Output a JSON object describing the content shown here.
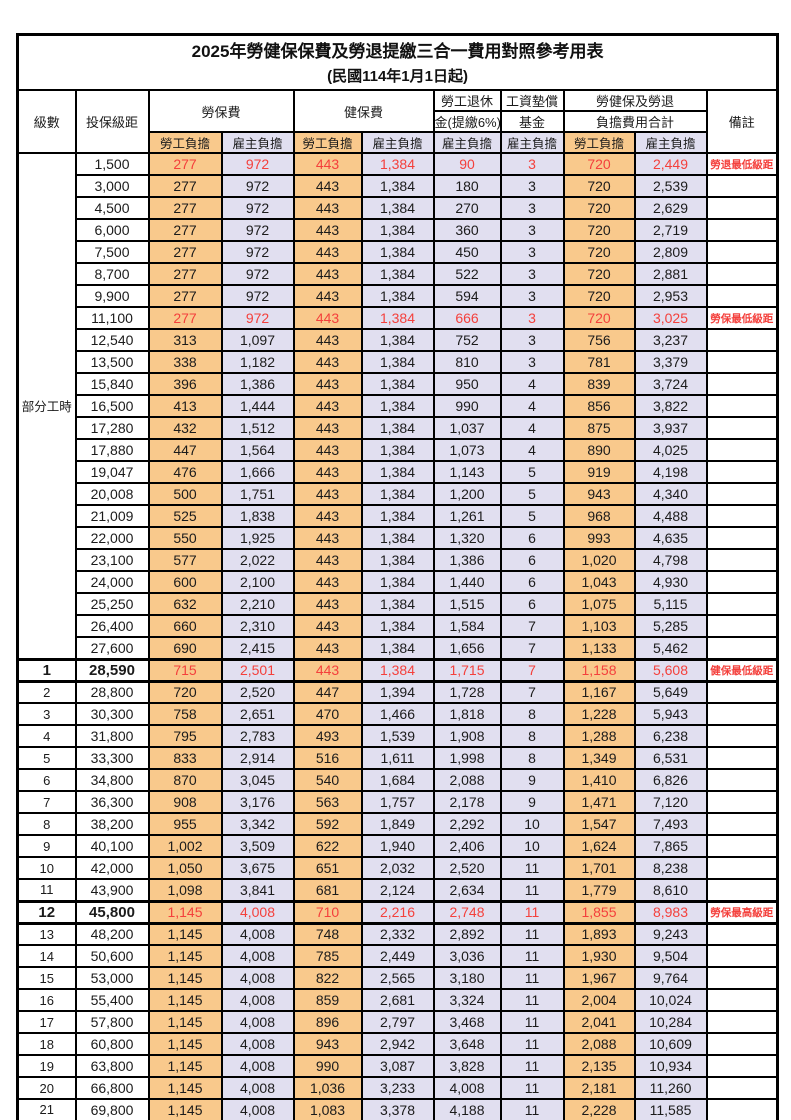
{
  "title": "2025年勞健保保費及勞退提繳三合一費用對照參考用表",
  "subtitle": "(民國114年1月1日起)",
  "header": {
    "level": "級數",
    "bracket": "投保級距",
    "labor": "勞保費",
    "health": "健保費",
    "pension_line1": "勞工退休",
    "pension_line2": "金(提繳6%)",
    "wage_line1": "工資墊償",
    "wage_line2": "基金",
    "total_line1": "勞健保及勞退",
    "total_line2": "負擔費用合計",
    "remark": "備註",
    "employee": "勞工負擔",
    "employer": "雇主負擔"
  },
  "part_time_label": "部分工時",
  "colors": {
    "employee_bg": "#F9C98C",
    "employer_bg": "#E1DFF0",
    "highlight_red": "#F4403C",
    "border": "#000000",
    "text": "#1B1B1B"
  },
  "rows": [
    {
      "lv": "",
      "br": "1,500",
      "a": "277",
      "b": "972",
      "c": "443",
      "d": "1,384",
      "p": "90",
      "w": "3",
      "ta": "720",
      "tb": "2,449",
      "rm": "勞退最低級距",
      "red": true,
      "hl": false
    },
    {
      "lv": "",
      "br": "3,000",
      "a": "277",
      "b": "972",
      "c": "443",
      "d": "1,384",
      "p": "180",
      "w": "3",
      "ta": "720",
      "tb": "2,539",
      "rm": "",
      "red": false,
      "hl": false
    },
    {
      "lv": "",
      "br": "4,500",
      "a": "277",
      "b": "972",
      "c": "443",
      "d": "1,384",
      "p": "270",
      "w": "3",
      "ta": "720",
      "tb": "2,629",
      "rm": "",
      "red": false,
      "hl": false
    },
    {
      "lv": "",
      "br": "6,000",
      "a": "277",
      "b": "972",
      "c": "443",
      "d": "1,384",
      "p": "360",
      "w": "3",
      "ta": "720",
      "tb": "2,719",
      "rm": "",
      "red": false,
      "hl": false
    },
    {
      "lv": "",
      "br": "7,500",
      "a": "277",
      "b": "972",
      "c": "443",
      "d": "1,384",
      "p": "450",
      "w": "3",
      "ta": "720",
      "tb": "2,809",
      "rm": "",
      "red": false,
      "hl": false
    },
    {
      "lv": "",
      "br": "8,700",
      "a": "277",
      "b": "972",
      "c": "443",
      "d": "1,384",
      "p": "522",
      "w": "3",
      "ta": "720",
      "tb": "2,881",
      "rm": "",
      "red": false,
      "hl": false
    },
    {
      "lv": "",
      "br": "9,900",
      "a": "277",
      "b": "972",
      "c": "443",
      "d": "1,384",
      "p": "594",
      "w": "3",
      "ta": "720",
      "tb": "2,953",
      "rm": "",
      "red": false,
      "hl": false
    },
    {
      "lv": "",
      "br": "11,100",
      "a": "277",
      "b": "972",
      "c": "443",
      "d": "1,384",
      "p": "666",
      "w": "3",
      "ta": "720",
      "tb": "3,025",
      "rm": "勞保最低級距",
      "red": true,
      "hl": false
    },
    {
      "lv": "",
      "br": "12,540",
      "a": "313",
      "b": "1,097",
      "c": "443",
      "d": "1,384",
      "p": "752",
      "w": "3",
      "ta": "756",
      "tb": "3,237",
      "rm": "",
      "red": false,
      "hl": false
    },
    {
      "lv": "",
      "br": "13,500",
      "a": "338",
      "b": "1,182",
      "c": "443",
      "d": "1,384",
      "p": "810",
      "w": "3",
      "ta": "781",
      "tb": "3,379",
      "rm": "",
      "red": false,
      "hl": false
    },
    {
      "lv": "",
      "br": "15,840",
      "a": "396",
      "b": "1,386",
      "c": "443",
      "d": "1,384",
      "p": "950",
      "w": "4",
      "ta": "839",
      "tb": "3,724",
      "rm": "",
      "red": false,
      "hl": false
    },
    {
      "lv": "",
      "br": "16,500",
      "a": "413",
      "b": "1,444",
      "c": "443",
      "d": "1,384",
      "p": "990",
      "w": "4",
      "ta": "856",
      "tb": "3,822",
      "rm": "",
      "red": false,
      "hl": false
    },
    {
      "lv": "",
      "br": "17,280",
      "a": "432",
      "b": "1,512",
      "c": "443",
      "d": "1,384",
      "p": "1,037",
      "w": "4",
      "ta": "875",
      "tb": "3,937",
      "rm": "",
      "red": false,
      "hl": false
    },
    {
      "lv": "",
      "br": "17,880",
      "a": "447",
      "b": "1,564",
      "c": "443",
      "d": "1,384",
      "p": "1,073",
      "w": "4",
      "ta": "890",
      "tb": "4,025",
      "rm": "",
      "red": false,
      "hl": false
    },
    {
      "lv": "",
      "br": "19,047",
      "a": "476",
      "b": "1,666",
      "c": "443",
      "d": "1,384",
      "p": "1,143",
      "w": "5",
      "ta": "919",
      "tb": "4,198",
      "rm": "",
      "red": false,
      "hl": false
    },
    {
      "lv": "",
      "br": "20,008",
      "a": "500",
      "b": "1,751",
      "c": "443",
      "d": "1,384",
      "p": "1,200",
      "w": "5",
      "ta": "943",
      "tb": "4,340",
      "rm": "",
      "red": false,
      "hl": false
    },
    {
      "lv": "",
      "br": "21,009",
      "a": "525",
      "b": "1,838",
      "c": "443",
      "d": "1,384",
      "p": "1,261",
      "w": "5",
      "ta": "968",
      "tb": "4,488",
      "rm": "",
      "red": false,
      "hl": false
    },
    {
      "lv": "",
      "br": "22,000",
      "a": "550",
      "b": "1,925",
      "c": "443",
      "d": "1,384",
      "p": "1,320",
      "w": "6",
      "ta": "993",
      "tb": "4,635",
      "rm": "",
      "red": false,
      "hl": false
    },
    {
      "lv": "",
      "br": "23,100",
      "a": "577",
      "b": "2,022",
      "c": "443",
      "d": "1,384",
      "p": "1,386",
      "w": "6",
      "ta": "1,020",
      "tb": "4,798",
      "rm": "",
      "red": false,
      "hl": false
    },
    {
      "lv": "",
      "br": "24,000",
      "a": "600",
      "b": "2,100",
      "c": "443",
      "d": "1,384",
      "p": "1,440",
      "w": "6",
      "ta": "1,043",
      "tb": "4,930",
      "rm": "",
      "red": false,
      "hl": false
    },
    {
      "lv": "",
      "br": "25,250",
      "a": "632",
      "b": "2,210",
      "c": "443",
      "d": "1,384",
      "p": "1,515",
      "w": "6",
      "ta": "1,075",
      "tb": "5,115",
      "rm": "",
      "red": false,
      "hl": false
    },
    {
      "lv": "",
      "br": "26,400",
      "a": "660",
      "b": "2,310",
      "c": "443",
      "d": "1,384",
      "p": "1,584",
      "w": "7",
      "ta": "1,103",
      "tb": "5,285",
      "rm": "",
      "red": false,
      "hl": false
    },
    {
      "lv": "",
      "br": "27,600",
      "a": "690",
      "b": "2,415",
      "c": "443",
      "d": "1,384",
      "p": "1,656",
      "w": "7",
      "ta": "1,133",
      "tb": "5,462",
      "rm": "",
      "red": false,
      "hl": false
    },
    {
      "lv": "1",
      "br": "28,590",
      "a": "715",
      "b": "2,501",
      "c": "443",
      "d": "1,384",
      "p": "1,715",
      "w": "7",
      "ta": "1,158",
      "tb": "5,608",
      "rm": "健保最低級距",
      "red": true,
      "hl": true
    },
    {
      "lv": "2",
      "br": "28,800",
      "a": "720",
      "b": "2,520",
      "c": "447",
      "d": "1,394",
      "p": "1,728",
      "w": "7",
      "ta": "1,167",
      "tb": "5,649",
      "rm": "",
      "red": false,
      "hl": false
    },
    {
      "lv": "3",
      "br": "30,300",
      "a": "758",
      "b": "2,651",
      "c": "470",
      "d": "1,466",
      "p": "1,818",
      "w": "8",
      "ta": "1,228",
      "tb": "5,943",
      "rm": "",
      "red": false,
      "hl": false
    },
    {
      "lv": "4",
      "br": "31,800",
      "a": "795",
      "b": "2,783",
      "c": "493",
      "d": "1,539",
      "p": "1,908",
      "w": "8",
      "ta": "1,288",
      "tb": "6,238",
      "rm": "",
      "red": false,
      "hl": false
    },
    {
      "lv": "5",
      "br": "33,300",
      "a": "833",
      "b": "2,914",
      "c": "516",
      "d": "1,611",
      "p": "1,998",
      "w": "8",
      "ta": "1,349",
      "tb": "6,531",
      "rm": "",
      "red": false,
      "hl": false
    },
    {
      "lv": "6",
      "br": "34,800",
      "a": "870",
      "b": "3,045",
      "c": "540",
      "d": "1,684",
      "p": "2,088",
      "w": "9",
      "ta": "1,410",
      "tb": "6,826",
      "rm": "",
      "red": false,
      "hl": false
    },
    {
      "lv": "7",
      "br": "36,300",
      "a": "908",
      "b": "3,176",
      "c": "563",
      "d": "1,757",
      "p": "2,178",
      "w": "9",
      "ta": "1,471",
      "tb": "7,120",
      "rm": "",
      "red": false,
      "hl": false
    },
    {
      "lv": "8",
      "br": "38,200",
      "a": "955",
      "b": "3,342",
      "c": "592",
      "d": "1,849",
      "p": "2,292",
      "w": "10",
      "ta": "1,547",
      "tb": "7,493",
      "rm": "",
      "red": false,
      "hl": false
    },
    {
      "lv": "9",
      "br": "40,100",
      "a": "1,002",
      "b": "3,509",
      "c": "622",
      "d": "1,940",
      "p": "2,406",
      "w": "10",
      "ta": "1,624",
      "tb": "7,865",
      "rm": "",
      "red": false,
      "hl": false
    },
    {
      "lv": "10",
      "br": "42,000",
      "a": "1,050",
      "b": "3,675",
      "c": "651",
      "d": "2,032",
      "p": "2,520",
      "w": "11",
      "ta": "1,701",
      "tb": "8,238",
      "rm": "",
      "red": false,
      "hl": false
    },
    {
      "lv": "11",
      "br": "43,900",
      "a": "1,098",
      "b": "3,841",
      "c": "681",
      "d": "2,124",
      "p": "2,634",
      "w": "11",
      "ta": "1,779",
      "tb": "8,610",
      "rm": "",
      "red": false,
      "hl": false
    },
    {
      "lv": "12",
      "br": "45,800",
      "a": "1,145",
      "b": "4,008",
      "c": "710",
      "d": "2,216",
      "p": "2,748",
      "w": "11",
      "ta": "1,855",
      "tb": "8,983",
      "rm": "勞保最高級距",
      "red": true,
      "hl": true
    },
    {
      "lv": "13",
      "br": "48,200",
      "a": "1,145",
      "b": "4,008",
      "c": "748",
      "d": "2,332",
      "p": "2,892",
      "w": "11",
      "ta": "1,893",
      "tb": "9,243",
      "rm": "",
      "red": false,
      "hl": false
    },
    {
      "lv": "14",
      "br": "50,600",
      "a": "1,145",
      "b": "4,008",
      "c": "785",
      "d": "2,449",
      "p": "3,036",
      "w": "11",
      "ta": "1,930",
      "tb": "9,504",
      "rm": "",
      "red": false,
      "hl": false
    },
    {
      "lv": "15",
      "br": "53,000",
      "a": "1,145",
      "b": "4,008",
      "c": "822",
      "d": "2,565",
      "p": "3,180",
      "w": "11",
      "ta": "1,967",
      "tb": "9,764",
      "rm": "",
      "red": false,
      "hl": false
    },
    {
      "lv": "16",
      "br": "55,400",
      "a": "1,145",
      "b": "4,008",
      "c": "859",
      "d": "2,681",
      "p": "3,324",
      "w": "11",
      "ta": "2,004",
      "tb": "10,024",
      "rm": "",
      "red": false,
      "hl": false
    },
    {
      "lv": "17",
      "br": "57,800",
      "a": "1,145",
      "b": "4,008",
      "c": "896",
      "d": "2,797",
      "p": "3,468",
      "w": "11",
      "ta": "2,041",
      "tb": "10,284",
      "rm": "",
      "red": false,
      "hl": false
    },
    {
      "lv": "18",
      "br": "60,800",
      "a": "1,145",
      "b": "4,008",
      "c": "943",
      "d": "2,942",
      "p": "3,648",
      "w": "11",
      "ta": "2,088",
      "tb": "10,609",
      "rm": "",
      "red": false,
      "hl": false
    },
    {
      "lv": "19",
      "br": "63,800",
      "a": "1,145",
      "b": "4,008",
      "c": "990",
      "d": "3,087",
      "p": "3,828",
      "w": "11",
      "ta": "2,135",
      "tb": "10,934",
      "rm": "",
      "red": false,
      "hl": false
    },
    {
      "lv": "20",
      "br": "66,800",
      "a": "1,145",
      "b": "4,008",
      "c": "1,036",
      "d": "3,233",
      "p": "4,008",
      "w": "11",
      "ta": "2,181",
      "tb": "11,260",
      "rm": "",
      "red": false,
      "hl": false
    },
    {
      "lv": "21",
      "br": "69,800",
      "a": "1,145",
      "b": "4,008",
      "c": "1,083",
      "d": "3,378",
      "p": "4,188",
      "w": "11",
      "ta": "2,228",
      "tb": "11,585",
      "rm": "",
      "red": false,
      "hl": false
    }
  ]
}
